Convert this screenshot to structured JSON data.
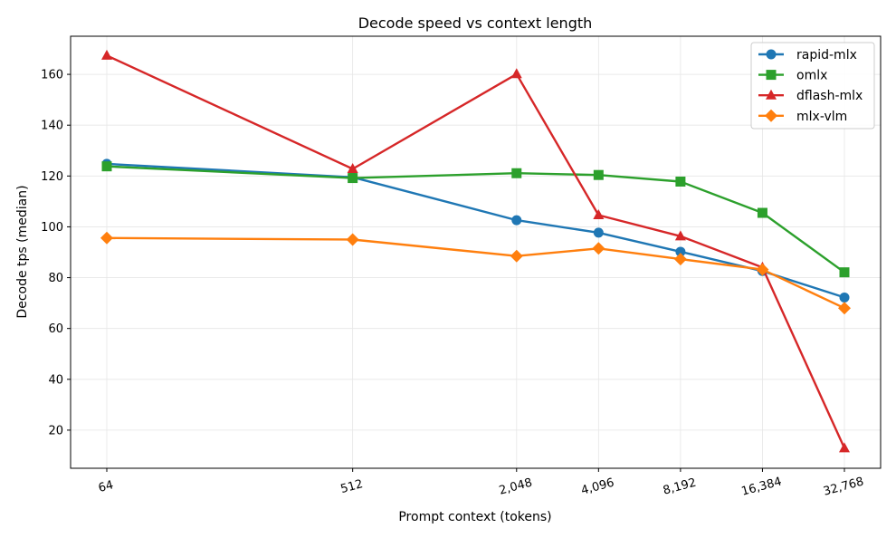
{
  "chart_data": {
    "type": "line",
    "title": "Decode speed vs context length",
    "xlabel": "Prompt context (tokens)",
    "ylabel": "Decode tps (median)",
    "x_scale": "log2",
    "x": [
      64,
      512,
      2048,
      4096,
      8192,
      16384,
      32768
    ],
    "x_tick_labels": [
      "64",
      "512",
      "2,048",
      "4,096",
      "8,192",
      "16,384",
      "32,768"
    ],
    "ylim": [
      5,
      175
    ],
    "y_ticks": [
      20,
      40,
      60,
      80,
      100,
      120,
      140,
      160
    ],
    "grid": true,
    "legend_position": "top-right",
    "series": [
      {
        "name": "rapid-mlx",
        "color": "#1f77b4",
        "marker": "circle",
        "values": [
          124.8,
          119.5,
          102.6,
          97.7,
          90.2,
          82.6,
          72.2
        ]
      },
      {
        "name": "omlx",
        "color": "#2ca02c",
        "marker": "square",
        "values": [
          123.8,
          119.2,
          121.1,
          120.4,
          117.8,
          105.5,
          82.1
        ]
      },
      {
        "name": "dflash-mlx",
        "color": "#d62728",
        "marker": "triangle",
        "values": [
          167.4,
          122.8,
          160.1,
          104.6,
          96.3,
          84.0,
          12.9
        ]
      },
      {
        "name": "mlx-vlm",
        "color": "#ff7f0e",
        "marker": "diamond",
        "values": [
          95.6,
          95.0,
          88.5,
          91.5,
          87.3,
          83.2,
          68.0
        ]
      }
    ]
  }
}
